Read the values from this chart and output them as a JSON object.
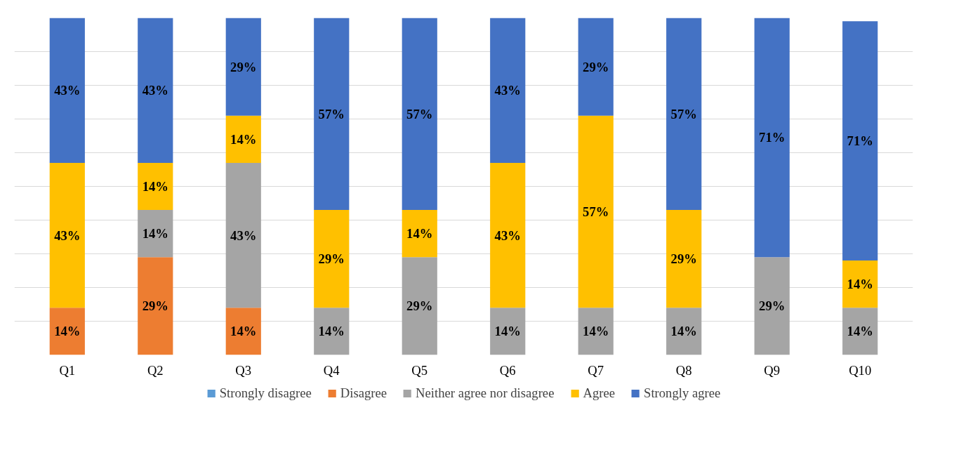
{
  "chart_data": {
    "type": "bar",
    "stacked": true,
    "legend": "bottom",
    "grid": "y",
    "tick_labels": "x",
    "categories": [
      "Q1",
      "Q2",
      "Q3",
      "Q4",
      "Q5",
      "Q6",
      "Q7",
      "Q8",
      "Q9",
      "Q10"
    ],
    "series": [
      {
        "name": "Strongly disagree",
        "color": "#5b9bd5",
        "values": [
          null,
          null,
          null,
          null,
          null,
          null,
          null,
          null,
          null,
          null
        ]
      },
      {
        "name": "Disagree",
        "color": "#ed7d31",
        "values": [
          14,
          29,
          14,
          null,
          null,
          null,
          null,
          null,
          null,
          null
        ],
        "value_labels": [
          "14%",
          "29%",
          "14%",
          null,
          null,
          null,
          null,
          null,
          null,
          null
        ]
      },
      {
        "name": "Neither agree nor disagree",
        "color": "#a5a5a5",
        "values": [
          null,
          14,
          43,
          14,
          29,
          14,
          14,
          14,
          29,
          14
        ],
        "value_labels": [
          null,
          "14%",
          "43%",
          "14%",
          "29%",
          "14%",
          "14%",
          "14%",
          "29%",
          "14%"
        ]
      },
      {
        "name": "Agree",
        "color": "#ffc000",
        "values": [
          43,
          14,
          14,
          29,
          14,
          43,
          57,
          29,
          null,
          14
        ],
        "value_labels": [
          "43%",
          "14%",
          "14%",
          "29%",
          "14%",
          "43%",
          "57%",
          "29%",
          null,
          "14%"
        ]
      },
      {
        "name": "Strongly agree",
        "color": "#4472c4",
        "values": [
          43,
          43,
          29,
          57,
          57,
          43,
          29,
          57,
          71,
          71
        ],
        "value_labels": [
          "43%",
          "43%",
          "29%",
          "57%",
          "57%",
          "43%",
          "29%",
          "57%",
          "71%",
          "71%"
        ]
      }
    ]
  }
}
